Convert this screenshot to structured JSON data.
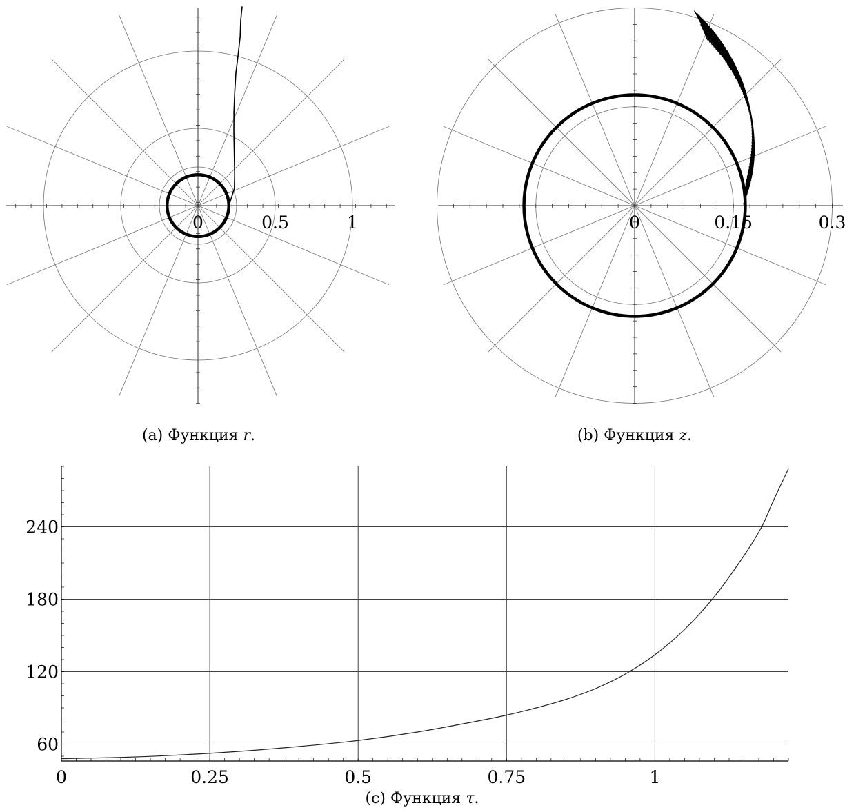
{
  "chart_data": [
    {
      "type": "polar",
      "panel": "a",
      "caption": {
        "prefix": "(a) Функция ",
        "symbol": "r",
        "suffix": "."
      },
      "radial_ticks": [
        {
          "value": 0,
          "label": "0"
        },
        {
          "value": 0.5,
          "label": "0.5"
        },
        {
          "value": 1,
          "label": "1"
        }
      ],
      "grid_circles": [
        0.25,
        0.5,
        1
      ],
      "spoke_angles_deg": [
        0,
        22.5,
        45,
        67.5,
        90,
        112.5,
        135,
        157.5,
        180,
        202.5,
        225,
        247.5,
        270,
        292.5,
        315,
        337.5
      ],
      "axis_extent": 1.28,
      "reference_circle": {
        "radius": 0.2
      },
      "series": [
        {
          "points_r_theta_deg": [
            [
              0.2,
              0
            ],
            [
              0.26,
              25
            ],
            [
              0.31,
              40
            ],
            [
              0.42,
              56
            ],
            [
              0.53,
              64
            ],
            [
              0.65,
              69
            ],
            [
              0.77,
              72
            ],
            [
              0.89,
              74
            ],
            [
              1.0,
              75
            ],
            [
              1.13,
              76
            ],
            [
              1.23,
              77
            ],
            [
              1.32,
              77.5
            ]
          ]
        }
      ]
    },
    {
      "type": "polar",
      "panel": "b",
      "caption": {
        "prefix": "(b) Функция ",
        "symbol": "z",
        "suffix": "."
      },
      "radial_ticks": [
        {
          "value": 0,
          "label": "0"
        },
        {
          "value": 0.15,
          "label": "0.15"
        },
        {
          "value": 0.3,
          "label": "0.3"
        }
      ],
      "grid_circles": [
        0.15,
        0.3
      ],
      "spoke_angles_deg": [
        0,
        22.5,
        45,
        67.5,
        90,
        112.5,
        135,
        157.5,
        180,
        202.5,
        225,
        247.5,
        270,
        292.5,
        315,
        337.5
      ],
      "axis_extent": 0.3,
      "reference_circle": {
        "radius": 0.168
      },
      "series": [
        {
          "description_of_shape": "decaying oscillation spiralling outward",
          "r_start": 0.168,
          "r_end": 0.293,
          "theta_start_deg": 5,
          "theta_end_deg": 70,
          "oscillation_count": 60,
          "amplitude_start": 0.004,
          "amplitude_end": 0.018,
          "wave_angular_spread_deg": 6
        }
      ]
    },
    {
      "type": "line",
      "panel": "c",
      "caption": {
        "prefix": "(c) Функция ",
        "symbol": "τ",
        "suffix": "."
      },
      "xlim": [
        0,
        1.225
      ],
      "ylim": [
        46,
        290
      ],
      "x_ticks": [
        {
          "value": 0,
          "label": "0"
        },
        {
          "value": 0.25,
          "label": "0.25"
        },
        {
          "value": 0.5,
          "label": "0.5"
        },
        {
          "value": 0.75,
          "label": "0.75"
        },
        {
          "value": 1,
          "label": "1"
        }
      ],
      "y_ticks": [
        {
          "value": 60,
          "label": "60"
        },
        {
          "value": 120,
          "label": "120"
        },
        {
          "value": 180,
          "label": "180"
        },
        {
          "value": 240,
          "label": "240"
        }
      ],
      "grid": true,
      "series": [
        {
          "x": [
            0,
            0.1,
            0.2,
            0.3,
            0.4,
            0.5,
            0.6,
            0.7,
            0.75,
            0.8,
            0.85,
            0.9,
            0.95,
            1.0,
            1.05,
            1.1,
            1.15,
            1.18,
            1.2,
            1.225
          ],
          "y": [
            48,
            49,
            51,
            54,
            58,
            63,
            70,
            79,
            84,
            90,
            97,
            106,
            118,
            134,
            155,
            182,
            216,
            240,
            262,
            288
          ]
        }
      ]
    }
  ]
}
